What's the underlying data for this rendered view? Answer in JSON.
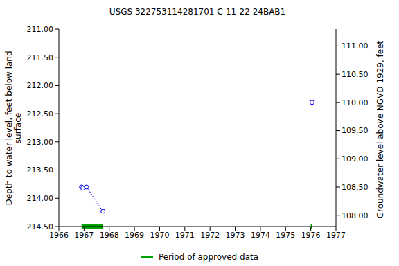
{
  "chart_data": {
    "type": "line",
    "title": "USGS 322753114281701 C-11-22 24BAB1",
    "y_label": [
      "Depth to water level, feet below land",
      "surface"
    ],
    "y2_label": "Groundwater level above NGVD 1929, feet",
    "x": [
      1966.9,
      1966.95,
      1967.1,
      1967.75,
      1976.05
    ],
    "series": [
      {
        "name": "Depth to water level",
        "color": "#0000ff",
        "marker": "open_circle",
        "line_style": "dotted",
        "values": [
          213.8,
          213.82,
          213.8,
          214.23,
          212.3
        ]
      }
    ],
    "xlim": [
      1966,
      1977
    ],
    "xticks": [
      1966,
      1967,
      1968,
      1969,
      1970,
      1971,
      1972,
      1973,
      1974,
      1975,
      1976,
      1977
    ],
    "ylim": [
      211,
      214.5
    ],
    "yticks": [
      {
        "value": 211,
        "label": "211.00"
      },
      {
        "value": 211.5,
        "label": "211.50"
      },
      {
        "value": 212,
        "label": "212.00"
      },
      {
        "value": 212.5,
        "label": "212.50"
      },
      {
        "value": 213,
        "label": "213.00"
      },
      {
        "value": 213.5,
        "label": "213.50"
      },
      {
        "value": 214,
        "label": "214.00"
      },
      {
        "value": 214.5,
        "label": "214.50"
      }
    ],
    "y2lim": [
      107.8,
      111.3
    ],
    "y2ticks": [
      {
        "value": 108,
        "label": "108.00"
      },
      {
        "value": 108.5,
        "label": "108.50"
      },
      {
        "value": 109,
        "label": "109.00"
      },
      {
        "value": 109.5,
        "label": "109.50"
      },
      {
        "value": 110,
        "label": "110.00"
      },
      {
        "value": 110.5,
        "label": "110.50"
      },
      {
        "value": 111,
        "label": "111.00"
      }
    ],
    "approved_periods": {
      "name": "Period of approved data",
      "color": "#00a000",
      "ranges": [
        [
          1966.9,
          1967.75
        ],
        [
          1976.0,
          1976.05
        ]
      ]
    },
    "grid": false,
    "legend": "bottom"
  }
}
